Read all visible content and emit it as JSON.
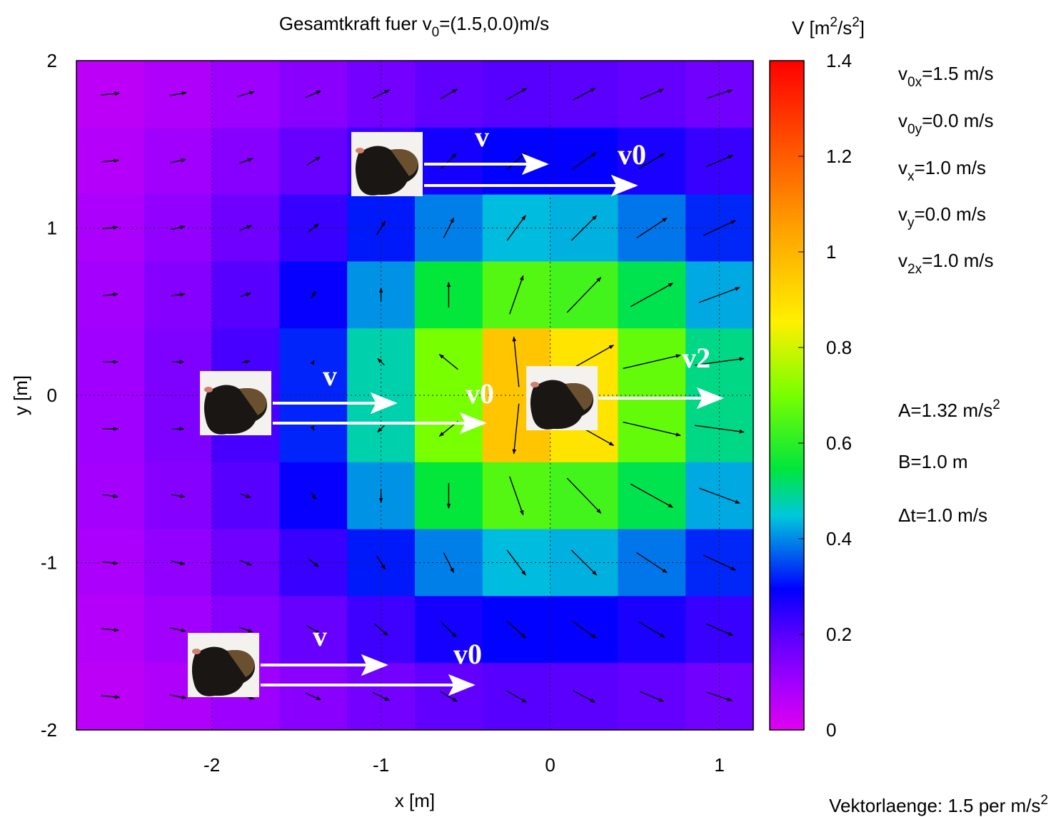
{
  "chart_data": {
    "type": "heatmap",
    "title": [
      {
        "t": "Gesamtkraft fuer v"
      },
      {
        "t": "0",
        "sub": true
      },
      {
        "t": "=(1.5,0.0)m/s"
      }
    ],
    "xlabel": "x [m]",
    "ylabel": "y [m]",
    "xlim": [
      -2.8,
      1.2
    ],
    "ylim": [
      -2,
      2
    ],
    "xticks": [
      -2,
      -1,
      0,
      1
    ],
    "yticks": [
      -2,
      -1,
      0,
      1,
      2
    ],
    "grid": true,
    "x": [
      -2.6,
      -2.2,
      -1.8,
      -1.4,
      -1.0,
      -0.6,
      -0.2,
      0.2,
      0.6,
      1.0
    ],
    "y": [
      1.8,
      1.4,
      1.0,
      0.6,
      0.2,
      -0.2,
      -0.6,
      -1.0,
      -1.4,
      -1.8
    ],
    "values": [
      [
        0.055,
        0.075,
        0.101,
        0.13,
        0.16,
        0.185,
        0.198,
        0.195,
        0.183,
        0.164
      ],
      [
        0.068,
        0.096,
        0.133,
        0.178,
        0.227,
        0.271,
        0.295,
        0.29,
        0.267,
        0.233
      ],
      [
        0.081,
        0.117,
        0.167,
        0.233,
        0.313,
        0.392,
        0.439,
        0.43,
        0.385,
        0.323
      ],
      [
        0.092,
        0.135,
        0.198,
        0.287,
        0.407,
        0.55,
        0.653,
        0.631,
        0.535,
        0.424
      ],
      [
        0.098,
        0.145,
        0.217,
        0.322,
        0.477,
        0.7,
        0.959,
        0.884,
        0.674,
        0.501
      ],
      [
        0.098,
        0.145,
        0.217,
        0.322,
        0.477,
        0.7,
        0.959,
        0.884,
        0.674,
        0.501
      ],
      [
        0.092,
        0.135,
        0.198,
        0.287,
        0.407,
        0.55,
        0.653,
        0.631,
        0.535,
        0.424
      ],
      [
        0.081,
        0.117,
        0.167,
        0.233,
        0.313,
        0.392,
        0.439,
        0.43,
        0.385,
        0.323
      ],
      [
        0.068,
        0.096,
        0.133,
        0.178,
        0.227,
        0.271,
        0.295,
        0.29,
        0.267,
        0.233
      ],
      [
        0.055,
        0.075,
        0.101,
        0.13,
        0.16,
        0.185,
        0.198,
        0.195,
        0.183,
        0.164
      ]
    ],
    "vectors": {
      "color": "#000000",
      "u": [
        [
          0.11,
          0.1,
          0.1,
          0.09,
          0.1,
          0.1,
          0.12,
          0.13,
          0.14,
          0.15
        ],
        [
          0.1,
          0.09,
          0.08,
          0.08,
          0.08,
          0.09,
          0.11,
          0.14,
          0.15,
          0.16
        ],
        [
          0.09,
          0.08,
          0.07,
          0.06,
          0.05,
          0.06,
          0.11,
          0.15,
          0.18,
          0.19
        ],
        [
          0.09,
          0.08,
          0.06,
          0.03,
          0,
          0,
          0.08,
          0.2,
          0.25,
          0.24
        ],
        [
          0.09,
          0.07,
          0.05,
          0.01,
          -0.04,
          -0.11,
          -0.03,
          0.35,
          0.34,
          0.29
        ],
        [
          0.09,
          0.07,
          0.05,
          0.01,
          -0.04,
          -0.11,
          -0.03,
          0.35,
          0.34,
          0.29
        ],
        [
          0.09,
          0.08,
          0.06,
          0.03,
          0,
          0,
          0.08,
          0.2,
          0.25,
          0.24
        ],
        [
          0.09,
          0.08,
          0.07,
          0.06,
          0.05,
          0.06,
          0.11,
          0.15,
          0.18,
          0.19
        ],
        [
          0.1,
          0.09,
          0.08,
          0.08,
          0.08,
          0.09,
          0.11,
          0.14,
          0.15,
          0.16
        ],
        [
          0.11,
          0.1,
          0.1,
          0.09,
          0.1,
          0.1,
          0.12,
          0.13,
          0.14,
          0.15
        ]
      ],
      "v": [
        [
          0.01,
          0.02,
          0.03,
          0.04,
          0.05,
          0.06,
          0.07,
          0.07,
          0.06,
          0.05
        ],
        [
          0.01,
          0.02,
          0.03,
          0.05,
          0.07,
          0.09,
          0.1,
          0.1,
          0.09,
          0.07
        ],
        [
          0.01,
          0.02,
          0.03,
          0.05,
          0.08,
          0.12,
          0.15,
          0.15,
          0.12,
          0.09
        ],
        [
          0.01,
          0.01,
          0.02,
          0.04,
          0.08,
          0.15,
          0.23,
          0.21,
          0.14,
          0.09
        ],
        [
          0,
          0,
          0.01,
          0.02,
          0.04,
          0.09,
          0.3,
          0.2,
          0.08,
          0.04
        ],
        [
          0,
          0,
          -0.01,
          -0.02,
          -0.04,
          -0.09,
          -0.3,
          -0.2,
          -0.08,
          -0.04
        ],
        [
          -0.01,
          -0.01,
          -0.02,
          -0.04,
          -0.08,
          -0.15,
          -0.23,
          -0.21,
          -0.14,
          -0.09
        ],
        [
          -0.01,
          -0.02,
          -0.03,
          -0.05,
          -0.08,
          -0.12,
          -0.15,
          -0.15,
          -0.12,
          -0.09
        ],
        [
          -0.01,
          -0.02,
          -0.03,
          -0.05,
          -0.07,
          -0.09,
          -0.1,
          -0.1,
          -0.09,
          -0.07
        ],
        [
          -0.01,
          -0.02,
          -0.03,
          -0.04,
          -0.05,
          -0.06,
          -0.07,
          -0.07,
          -0.06,
          -0.05
        ]
      ]
    },
    "colorbar": {
      "label": [
        {
          "t": "V [m"
        },
        {
          "t": "2",
          "sup": true
        },
        {
          "t": "/s"
        },
        {
          "t": "2",
          "sup": true
        },
        {
          "t": "]"
        }
      ],
      "lim": [
        0,
        1.4
      ],
      "ticks": [
        0,
        0.2,
        0.4,
        0.6,
        0.8,
        1,
        1.2,
        1.4
      ]
    },
    "annotations": [
      [
        {
          "t": "v"
        },
        {
          "t": "0x",
          "sub": true
        },
        {
          "t": "=1.5 m/s"
        }
      ],
      [
        {
          "t": "v"
        },
        {
          "t": "0y",
          "sub": true
        },
        {
          "t": "=0.0 m/s"
        }
      ],
      [
        {
          "t": "v"
        },
        {
          "t": "x",
          "sub": true
        },
        {
          "t": "=1.0 m/s"
        }
      ],
      [
        {
          "t": "v"
        },
        {
          "t": "y",
          "sub": true
        },
        {
          "t": "=0.0 m/s"
        }
      ],
      [
        {
          "t": "v"
        },
        {
          "t": "2x",
          "sub": true
        },
        {
          "t": "=1.0 m/s"
        }
      ],
      [
        {
          "t": "A=1.32 m/s"
        },
        {
          "t": "2",
          "sup": true
        }
      ],
      [
        {
          "t": "B=1.0 m"
        }
      ],
      [
        {
          "t": "Δt=1.0 m/s"
        }
      ]
    ],
    "arrow_labels": [
      "v",
      "v0",
      "v",
      "v0",
      "v2",
      "v",
      "v0"
    ],
    "footer": [
      {
        "t": "Vektorlaenge: 1.5 per m/s"
      },
      {
        "t": "2",
        "sup": true
      }
    ]
  }
}
